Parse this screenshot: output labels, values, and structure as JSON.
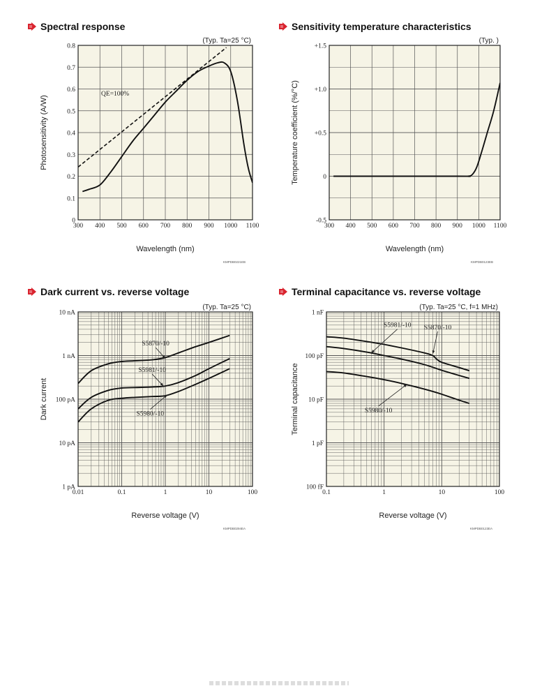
{
  "colors": {
    "plot_bg": "#f6f4e6",
    "grid": "#555555",
    "curve": "#111111",
    "arrow_icon": "#d9232e"
  },
  "icons": {
    "title_marker": "arrow-right-icon"
  },
  "chart_data": [
    {
      "id": "spectral",
      "type": "line",
      "title": "Spectral response",
      "condition": "(Typ. Ta=25 °C)",
      "xlabel": "Wavelength (nm)",
      "ylabel": "Photosensitivity (A/W)",
      "code": "KMPDB0221EB",
      "xlim": [
        300,
        1100
      ],
      "ylim": [
        0,
        0.8
      ],
      "x_ticks": [
        300,
        400,
        500,
        600,
        700,
        800,
        900,
        1000,
        1100
      ],
      "y_ticks": [
        0,
        0.1,
        0.2,
        0.3,
        0.4,
        0.5,
        0.6,
        0.7,
        0.8
      ],
      "x_tick_labels": [
        "300",
        "400",
        "500",
        "600",
        "700",
        "800",
        "900",
        "1000",
        "1100"
      ],
      "y_tick_labels": [
        "0",
        "0.1",
        "0.2",
        "0.3",
        "0.4",
        "0.5",
        "0.6",
        "0.7",
        "0.8"
      ],
      "series": [
        {
          "dashed": false,
          "points": [
            [
              320,
              0.13
            ],
            [
              350,
              0.14
            ],
            [
              400,
              0.16
            ],
            [
              450,
              0.22
            ],
            [
              500,
              0.29
            ],
            [
              550,
              0.36
            ],
            [
              600,
              0.42
            ],
            [
              650,
              0.48
            ],
            [
              700,
              0.54
            ],
            [
              750,
              0.59
            ],
            [
              800,
              0.64
            ],
            [
              850,
              0.68
            ],
            [
              900,
              0.705
            ],
            [
              940,
              0.72
            ],
            [
              970,
              0.72
            ],
            [
              1000,
              0.68
            ],
            [
              1030,
              0.55
            ],
            [
              1060,
              0.35
            ],
            [
              1080,
              0.24
            ],
            [
              1100,
              0.17
            ]
          ]
        },
        {
          "name": "QE=100%",
          "dashed": true,
          "points": [
            [
              300,
              0.242
            ],
            [
              980,
              0.79
            ]
          ]
        }
      ],
      "annotations": [
        {
          "text": "QE=100%",
          "x": 470,
          "y": 0.57
        }
      ]
    },
    {
      "id": "temp",
      "type": "line",
      "title": "Sensitivity temperature characteristics",
      "condition": "(Typ. )",
      "xlabel": "Wavelength (nm)",
      "ylabel": "Temperature coefficient (%/°C)",
      "code": "KMPDB0123EB",
      "xlim": [
        300,
        1100
      ],
      "ylim": [
        -0.5,
        1.5
      ],
      "x_ticks": [
        300,
        400,
        500,
        600,
        700,
        800,
        900,
        1000,
        1100
      ],
      "y_ticks": [
        -0.5,
        0,
        0.5,
        1.0,
        1.5
      ],
      "x_tick_labels": [
        "300",
        "400",
        "500",
        "600",
        "700",
        "800",
        "900",
        "1000",
        "1100"
      ],
      "y_tick_labels": [
        "-0.5",
        "0",
        "+0.5",
        "+1.0",
        "+1.5"
      ],
      "series": [
        {
          "dashed": false,
          "points": [
            [
              320,
              0
            ],
            [
              900,
              0
            ],
            [
              950,
              0
            ],
            [
              970,
              0.02
            ],
            [
              990,
              0.1
            ],
            [
              1010,
              0.25
            ],
            [
              1040,
              0.5
            ],
            [
              1070,
              0.75
            ],
            [
              1100,
              1.07
            ]
          ]
        }
      ],
      "annotations": []
    },
    {
      "id": "dark",
      "type": "line",
      "title": "Dark current vs. reverse voltage",
      "condition": "(Typ. Ta=25 °C)",
      "xlabel": "Reverse voltage (V)",
      "ylabel": "Dark current",
      "code": "KMPDB0294EA",
      "xscale": "log",
      "yscale": "log",
      "xlim": [
        0.01,
        100
      ],
      "ylim": [
        1e-12,
        1e-08
      ],
      "x_ticks": [
        0.01,
        0.1,
        1,
        10,
        100
      ],
      "y_ticks": [
        1e-12,
        1e-11,
        1e-10,
        1e-09,
        1e-08
      ],
      "x_tick_labels": [
        "0.01",
        "0.1",
        "1",
        "10",
        "100"
      ],
      "y_tick_labels": [
        "1 pA",
        "10 pA",
        "100 pA",
        "1 nA",
        "10 nA"
      ],
      "series": [
        {
          "name": "S5870/-10",
          "dashed": false,
          "points": [
            [
              0.01,
              2.3e-10
            ],
            [
              0.02,
              4.5e-10
            ],
            [
              0.05,
              6.5e-10
            ],
            [
              0.1,
              7.3e-10
            ],
            [
              0.2,
              7.6e-10
            ],
            [
              0.5,
              8e-10
            ],
            [
              1,
              9e-10
            ],
            [
              2,
              1.15e-09
            ],
            [
              5,
              1.6e-09
            ],
            [
              10,
              2e-09
            ],
            [
              30,
              2.9e-09
            ]
          ]
        },
        {
          "name": "S5981/-10",
          "dashed": false,
          "points": [
            [
              0.01,
              6e-11
            ],
            [
              0.02,
              1.1e-10
            ],
            [
              0.05,
              1.6e-10
            ],
            [
              0.1,
              1.8e-10
            ],
            [
              0.2,
              1.85e-10
            ],
            [
              0.5,
              1.9e-10
            ],
            [
              1,
              2e-10
            ],
            [
              2,
              2.4e-10
            ],
            [
              5,
              3.5e-10
            ],
            [
              10,
              5e-10
            ],
            [
              30,
              8.5e-10
            ]
          ]
        },
        {
          "name": "S5980/-10",
          "dashed": false,
          "points": [
            [
              0.01,
              3e-11
            ],
            [
              0.02,
              6e-11
            ],
            [
              0.05,
              9.5e-11
            ],
            [
              0.1,
              1.05e-10
            ],
            [
              0.2,
              1.1e-10
            ],
            [
              0.5,
              1.15e-10
            ],
            [
              1,
              1.2e-10
            ],
            [
              2,
              1.5e-10
            ],
            [
              5,
              2.2e-10
            ],
            [
              10,
              3e-10
            ],
            [
              30,
              5e-10
            ]
          ]
        }
      ],
      "annotations": [
        {
          "text": "S5870/-10",
          "x": 0.6,
          "y": 1.7e-09,
          "arrow_to": [
            1.0,
            8.6e-10
          ]
        },
        {
          "text": "S5981/-10",
          "x": 0.5,
          "y": 4.2e-10,
          "arrow_to": [
            0.9,
            2e-10
          ]
        },
        {
          "text": "S5980/-10",
          "x": 0.45,
          "y": 4.2e-11,
          "arrow_to": [
            1.1,
            1.25e-10
          ]
        }
      ]
    },
    {
      "id": "cap",
      "type": "line",
      "title": "Terminal capacitance vs. reverse voltage",
      "condition": "(Typ. Ta=25 °C, f=1 MHz)",
      "xlabel": "Reverse voltage (V)",
      "ylabel": "Terminal capacitance",
      "code": "KMPDB0123EA",
      "xscale": "log",
      "yscale": "log",
      "xlim": [
        0.1,
        100
      ],
      "ylim": [
        1e-13,
        1e-09
      ],
      "x_ticks": [
        0.1,
        1,
        10,
        100
      ],
      "y_ticks": [
        1e-13,
        1e-12,
        1e-11,
        1e-10,
        1e-09
      ],
      "x_tick_labels": [
        "0.1",
        "1",
        "10",
        "100"
      ],
      "y_tick_labels": [
        "100 fF",
        "1 pF",
        "10 pF",
        "100 pF",
        "1 nF"
      ],
      "series": [
        {
          "name": "S5870/-10",
          "dashed": false,
          "points": [
            [
              0.1,
              2.7e-10
            ],
            [
              0.2,
              2.5e-10
            ],
            [
              0.5,
              2.1e-10
            ],
            [
              1,
              1.8e-10
            ],
            [
              2,
              1.5e-10
            ],
            [
              5,
              1.15e-10
            ],
            [
              7,
              1e-10
            ],
            [
              8,
              8.5e-11
            ],
            [
              10,
              7e-11
            ],
            [
              20,
              5.3e-11
            ],
            [
              30,
              4.5e-11
            ]
          ]
        },
        {
          "name": "S5981/-10",
          "dashed": false,
          "points": [
            [
              0.1,
              1.6e-10
            ],
            [
              0.2,
              1.45e-10
            ],
            [
              0.5,
              1.2e-10
            ],
            [
              1,
              1e-10
            ],
            [
              2,
              8.3e-11
            ],
            [
              5,
              6.2e-11
            ],
            [
              10,
              4.6e-11
            ],
            [
              20,
              3.5e-11
            ],
            [
              30,
              3e-11
            ]
          ]
        },
        {
          "name": "S5980/-10",
          "dashed": false,
          "points": [
            [
              0.1,
              4.3e-11
            ],
            [
              0.2,
              4e-11
            ],
            [
              0.5,
              3.3e-11
            ],
            [
              1,
              2.8e-11
            ],
            [
              2,
              2.3e-11
            ],
            [
              5,
              1.7e-11
            ],
            [
              10,
              1.3e-11
            ],
            [
              20,
              9.5e-12
            ],
            [
              30,
              8e-12
            ]
          ]
        }
      ],
      "annotations": [
        {
          "text": "S5981/-10",
          "x": 1.7,
          "y": 4.5e-10,
          "arrow_to": [
            0.6,
            1.15e-10
          ]
        },
        {
          "text": "S5870/-10",
          "x": 8.5,
          "y": 4e-10,
          "arrow_to": [
            7,
            1.1e-10
          ]
        },
        {
          "text": "S5980/-10",
          "x": 0.8,
          "y": 5e-12,
          "arrow_to": [
            2.5,
            2.2e-11
          ]
        }
      ]
    }
  ]
}
